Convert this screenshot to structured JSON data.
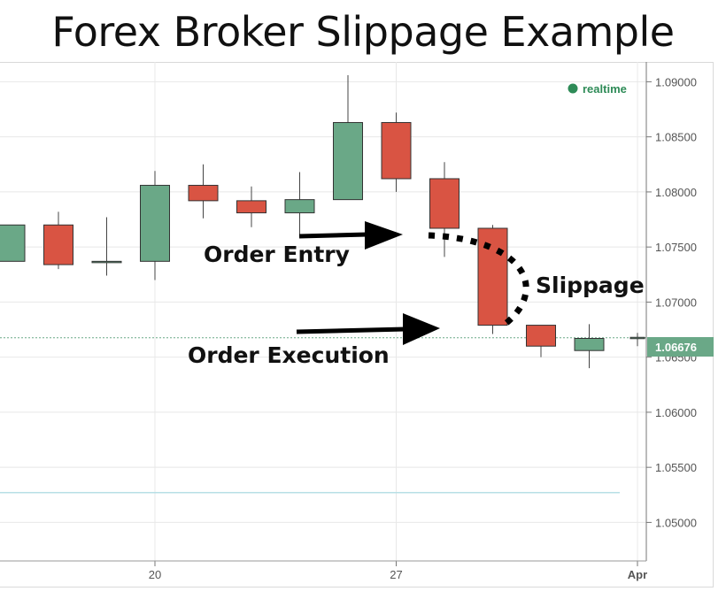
{
  "title": "Forex Broker Slippage Example",
  "realtime_label": "realtime",
  "current_price_label": "1.06676",
  "annotations": {
    "order_entry": "Order Entry",
    "order_execution": "Order Execution",
    "slippage": "Slippage"
  },
  "colors": {
    "up": "#6aa887",
    "down": "#d95443",
    "grid": "#e8e8e8",
    "price_line": "#6aa887",
    "support_line": "#b7dfe6",
    "realtime_dot": "#2e8b57"
  },
  "chart_data": {
    "type": "candlestick",
    "title": "Forex Broker Slippage Example",
    "xlabel": "",
    "ylabel": "",
    "ylim": [
      1.0465,
      1.0918
    ],
    "yticks": [
      "1.09000",
      "1.08500",
      "1.08000",
      "1.07500",
      "1.07000",
      "1.06500",
      "1.06000",
      "1.05500",
      "1.05000"
    ],
    "ytick_values": [
      1.09,
      1.085,
      1.08,
      1.075,
      1.07,
      1.065,
      1.06,
      1.055,
      1.05
    ],
    "xticks": [
      {
        "label": "20",
        "index": 3
      },
      {
        "label": "27",
        "index": 8
      },
      {
        "label": "Apr",
        "index": 13,
        "bold": true
      }
    ],
    "current_price": 1.06676,
    "candles": [
      {
        "open": 1.0737,
        "high": 1.077,
        "low": 1.0737,
        "close": 1.077
      },
      {
        "open": 1.077,
        "high": 1.0782,
        "low": 1.073,
        "close": 1.0734
      },
      {
        "open": 1.0737,
        "high": 1.0777,
        "low": 1.0724,
        "close": 1.0737
      },
      {
        "open": 1.0737,
        "high": 1.0819,
        "low": 1.072,
        "close": 1.0806
      },
      {
        "open": 1.0806,
        "high": 1.0825,
        "low": 1.0776,
        "close": 1.0792
      },
      {
        "open": 1.0792,
        "high": 1.0805,
        "low": 1.0768,
        "close": 1.0781
      },
      {
        "open": 1.0781,
        "high": 1.0818,
        "low": 1.076,
        "close": 1.0793
      },
      {
        "open": 1.0793,
        "high": 1.0906,
        "low": 1.0793,
        "close": 1.0863
      },
      {
        "open": 1.0863,
        "high": 1.0872,
        "low": 1.08,
        "close": 1.0812
      },
      {
        "open": 1.0812,
        "high": 1.0827,
        "low": 1.0741,
        "close": 1.0767
      },
      {
        "open": 1.0767,
        "high": 1.077,
        "low": 1.0671,
        "close": 1.0679
      },
      {
        "open": 1.0679,
        "high": 1.0679,
        "low": 1.065,
        "close": 1.066
      },
      {
        "open": 1.0656,
        "high": 1.068,
        "low": 1.064,
        "close": 1.0667
      },
      {
        "open": 1.0667,
        "high": 1.0672,
        "low": 1.066,
        "close": 1.0668
      }
    ],
    "support_level": 1.0527
  }
}
